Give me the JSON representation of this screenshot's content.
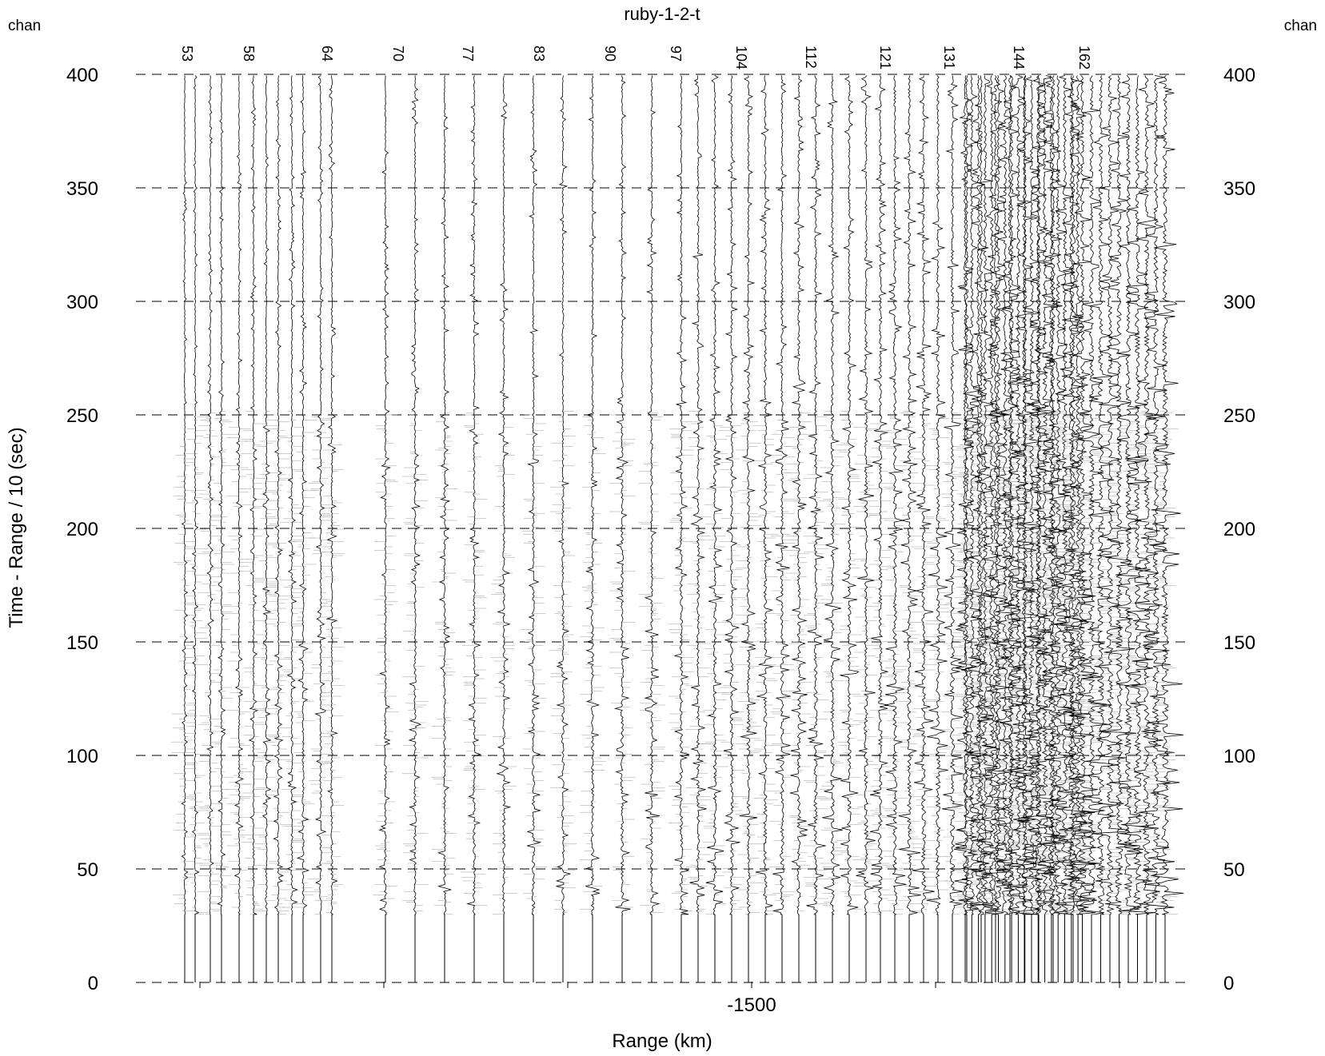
{
  "chart_data": {
    "type": "line",
    "title": "ruby-1-2-t",
    "xlabel": "Range (km)",
    "ylabel": "Time - Range / 10 (sec)",
    "corner_label_left": "chan",
    "corner_label_right": "chan",
    "ylim": [
      0,
      400
    ],
    "y_ticks": [
      0,
      50,
      100,
      150,
      200,
      250,
      300,
      350,
      400
    ],
    "x_tick_labels": [
      "-1500"
    ],
    "grid": "horizontal-dashed",
    "colors": {
      "trace": "#000000",
      "noise": "#9a9a9a",
      "grid": "#000000"
    },
    "channel_labels": [
      "53",
      "58",
      "64",
      "70",
      "77",
      "83",
      "90",
      "97",
      "104",
      "112",
      "121",
      "131",
      "144",
      "162"
    ],
    "traces": {
      "count": 76,
      "first_channel": 53,
      "last_channel": 166,
      "onset_time_sec": 30
    }
  }
}
